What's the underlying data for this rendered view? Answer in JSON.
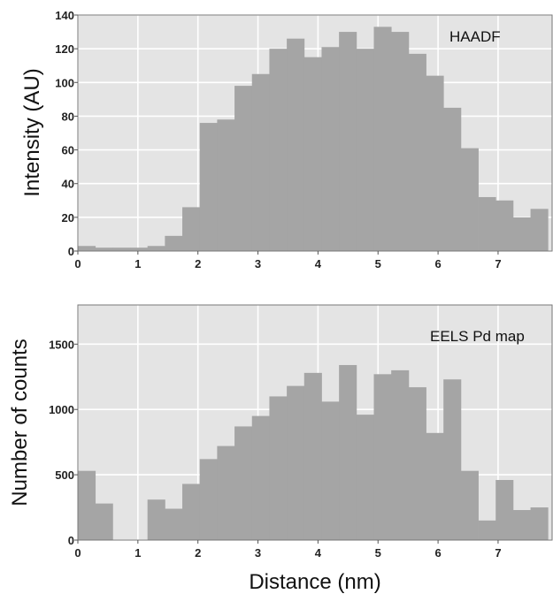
{
  "chart_data": [
    {
      "type": "bar",
      "annotation": "HAADF",
      "xlabel": "",
      "ylabel": "Intensity (AU)",
      "xlim": [
        0,
        7.9
      ],
      "ylim": [
        0,
        140
      ],
      "xticks": [
        "0",
        "1",
        "2",
        "3",
        "4",
        "5",
        "6",
        "7"
      ],
      "yticks": [
        "0",
        "20",
        "40",
        "60",
        "80",
        "100",
        "120",
        "140"
      ],
      "bin_width": 0.29,
      "x": [
        0.0,
        0.29,
        0.58,
        0.87,
        1.16,
        1.45,
        1.74,
        2.03,
        2.32,
        2.61,
        2.9,
        3.19,
        3.48,
        3.77,
        4.06,
        4.35,
        4.64,
        4.93,
        5.22,
        5.51,
        5.8,
        6.09,
        6.38,
        6.67,
        6.96,
        7.25,
        7.54
      ],
      "values": [
        3,
        2,
        2,
        2,
        3,
        9,
        26,
        76,
        78,
        98,
        105,
        120,
        126,
        115,
        121,
        130,
        120,
        133,
        130,
        117,
        104,
        85,
        61,
        32,
        30,
        20,
        25
      ],
      "grid": true
    },
    {
      "type": "bar",
      "annotation": "EELS Pd map",
      "xlabel": "Distance (nm)",
      "ylabel": "Number of counts",
      "xlim": [
        0,
        7.9
      ],
      "ylim": [
        0,
        1800
      ],
      "xticks": [
        "0",
        "1",
        "2",
        "3",
        "4",
        "5",
        "6",
        "7"
      ],
      "yticks": [
        "0",
        "500",
        "1000",
        "1500"
      ],
      "bin_width": 0.29,
      "x": [
        0.0,
        0.29,
        0.58,
        0.87,
        1.16,
        1.45,
        1.74,
        2.03,
        2.32,
        2.61,
        2.9,
        3.19,
        3.48,
        3.77,
        4.06,
        4.35,
        4.64,
        4.93,
        5.22,
        5.51,
        5.8,
        6.09,
        6.38,
        6.67,
        6.96,
        7.25,
        7.54
      ],
      "values": [
        530,
        280,
        0,
        0,
        310,
        240,
        430,
        620,
        720,
        870,
        950,
        1100,
        1180,
        1280,
        1060,
        1340,
        960,
        1270,
        1300,
        1170,
        820,
        1230,
        530,
        150,
        460,
        230,
        250
      ],
      "grid": true
    }
  ]
}
